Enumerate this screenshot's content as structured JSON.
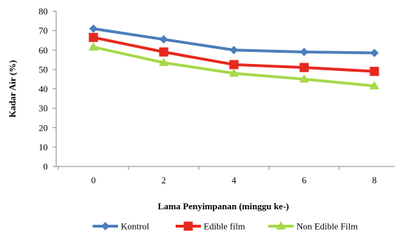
{
  "chart_data": {
    "type": "line",
    "title": "",
    "xlabel": "Lama Penyimpanan (minggu ke-)",
    "ylabel": "Kadar Air (%)",
    "x": [
      0,
      2,
      4,
      6,
      8
    ],
    "x_tick_labels": [
      "0",
      "2",
      "4",
      "6",
      "8"
    ],
    "ylim": [
      0,
      80
    ],
    "y_ticks": [
      0,
      10,
      20,
      30,
      40,
      50,
      60,
      70,
      80
    ],
    "y_tick_labels": [
      "0",
      "10",
      "20",
      "30",
      "40",
      "50",
      "60",
      "70",
      "80"
    ],
    "grid": false,
    "legend_position": "bottom",
    "series": [
      {
        "name": "Kontrol",
        "values": [
          71,
          65.5,
          60,
          59,
          58.5
        ],
        "color": "#4a7ebb",
        "marker": "diamond"
      },
      {
        "name": "Edible film",
        "values": [
          66.5,
          59,
          52.5,
          51,
          49
        ],
        "color": "#e8281e",
        "marker": "square"
      },
      {
        "name": "Non Edible Film",
        "values": [
          61.5,
          53.5,
          48,
          45,
          41.5
        ],
        "color": "#a6d84a",
        "marker": "triangle"
      }
    ]
  }
}
